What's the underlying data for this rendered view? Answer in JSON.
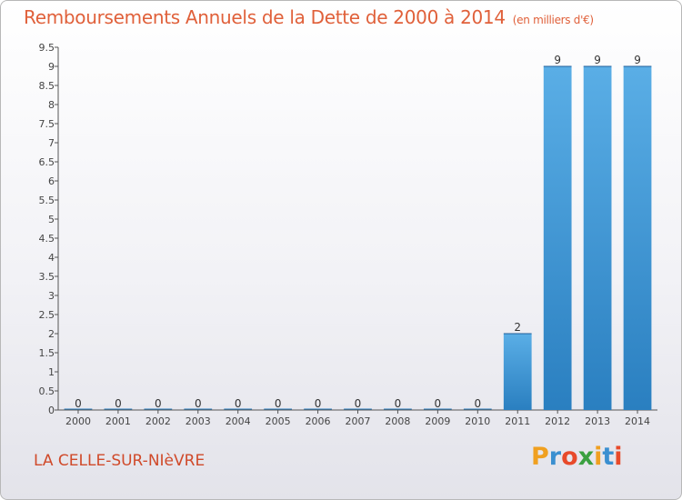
{
  "header": {
    "title": "Remboursements Annuels de la Dette de 2000 à 2014",
    "unit": "(en milliers d'€)"
  },
  "footer": {
    "place": "LA CELLE-SUR-NIèVRE",
    "logo_letters": [
      "P",
      "r",
      "o",
      "x",
      "i",
      "t",
      "i"
    ]
  },
  "colors": {
    "title": "#e0603a",
    "bar_light": "#5aaee6",
    "bar_dark": "#2a7fc0"
  },
  "chart_data": {
    "type": "bar",
    "categories": [
      "2000",
      "2001",
      "2002",
      "2003",
      "2004",
      "2005",
      "2006",
      "2007",
      "2008",
      "2009",
      "2010",
      "2011",
      "2012",
      "2013",
      "2014"
    ],
    "values": [
      0,
      0,
      0,
      0,
      0,
      0,
      0,
      0,
      0,
      0,
      0,
      2,
      9,
      9,
      9
    ],
    "data_labels": [
      "0",
      "0",
      "0",
      "0",
      "0",
      "0",
      "0",
      "0",
      "0",
      "0",
      "0",
      "2",
      "9",
      "9",
      "9"
    ],
    "ylim": [
      0,
      9.5
    ],
    "yticks": [
      "0",
      "0.5",
      "1",
      "1.5",
      "2",
      "2.5",
      "3",
      "3.5",
      "4",
      "4.5",
      "5",
      "5.5",
      "6",
      "6.5",
      "7",
      "7.5",
      "8",
      "8.5",
      "9",
      "9.5"
    ],
    "grid": false
  }
}
